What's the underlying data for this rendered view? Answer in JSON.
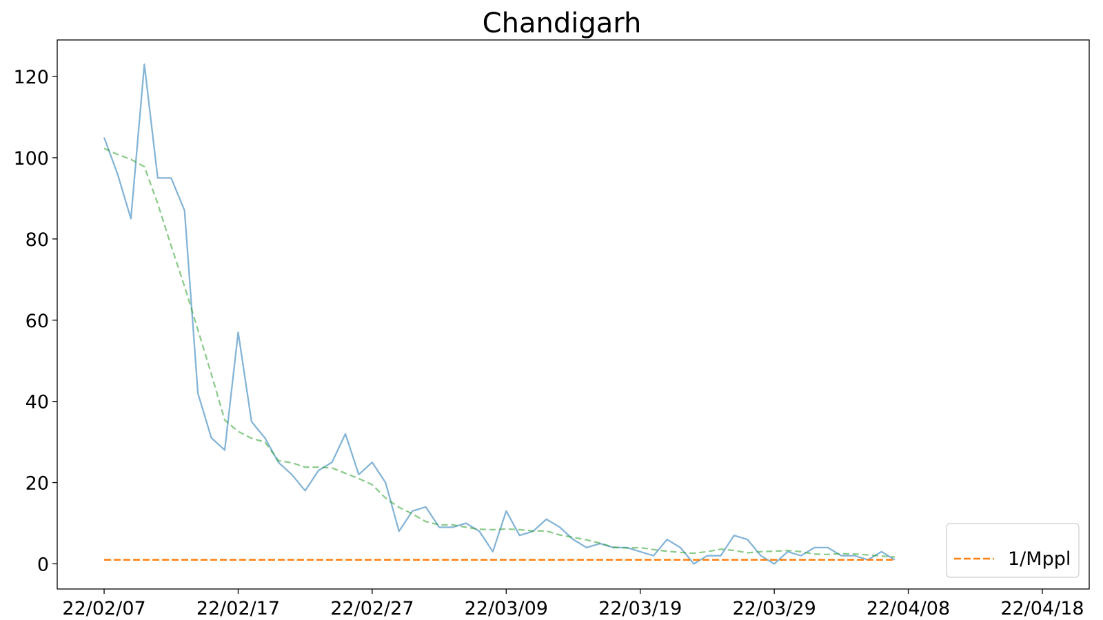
{
  "chart_data": {
    "type": "line",
    "title": "Chandigarh",
    "x_tick_labels": [
      "22/02/07",
      "22/02/17",
      "22/02/27",
      "22/03/09",
      "22/03/19",
      "22/03/29",
      "22/04/08",
      "22/04/18"
    ],
    "y_tick_labels": [
      "0",
      "20",
      "40",
      "60",
      "80",
      "100",
      "120"
    ],
    "xlim_days": [
      -3.5,
      73.5
    ],
    "ylim": [
      -6.2,
      129
    ],
    "x_start_date": "2022-02-07",
    "series": [
      {
        "name": "",
        "color": "#1f77b4",
        "style": "solid",
        "values": [
          105,
          96,
          85,
          123,
          95,
          95,
          87,
          42,
          31,
          28,
          57,
          35,
          31,
          25,
          22,
          18,
          23,
          25,
          32,
          22,
          25,
          20,
          8,
          13,
          14,
          9,
          9,
          10,
          8,
          3,
          13,
          7,
          8,
          11,
          9,
          6,
          4,
          5,
          4,
          4,
          3,
          2,
          6,
          4,
          0,
          2,
          2,
          7,
          6,
          2,
          0,
          3,
          2,
          4,
          4,
          2,
          2,
          1,
          3,
          1
        ]
      },
      {
        "name": "",
        "color": "#2ca02c",
        "style": "dashed",
        "values": [
          102.3,
          100.8,
          99.6,
          97.8,
          88.7,
          78.3,
          68.3,
          57.6,
          46.7,
          35.4,
          32.6,
          30.9,
          30.0,
          25.4,
          24.9,
          23.8,
          23.8,
          23.6,
          22.3,
          21.0,
          19.5,
          16.2,
          13.9,
          12.3,
          10.4,
          9.6,
          9.6,
          9.0,
          8.5,
          8.4,
          8.6,
          8.4,
          8.1,
          8.1,
          7.1,
          6.5,
          5.9,
          5.1,
          4.1,
          3.9,
          4.0,
          3.5,
          3.1,
          2.8,
          2.6,
          3.0,
          3.6,
          3.3,
          2.7,
          3.0,
          3.1,
          3.3,
          3.0,
          2.4,
          2.3,
          2.5,
          2.4,
          2.2,
          1.9,
          1.7
        ]
      },
      {
        "name": "1/Mppl",
        "color": "#ff7f0e",
        "style": "dashed",
        "x_range_days": [
          0,
          59
        ],
        "value": 1
      }
    ],
    "legend": {
      "position": "bottom-right",
      "entries": [
        "1/Mppl"
      ]
    },
    "grid": false
  }
}
